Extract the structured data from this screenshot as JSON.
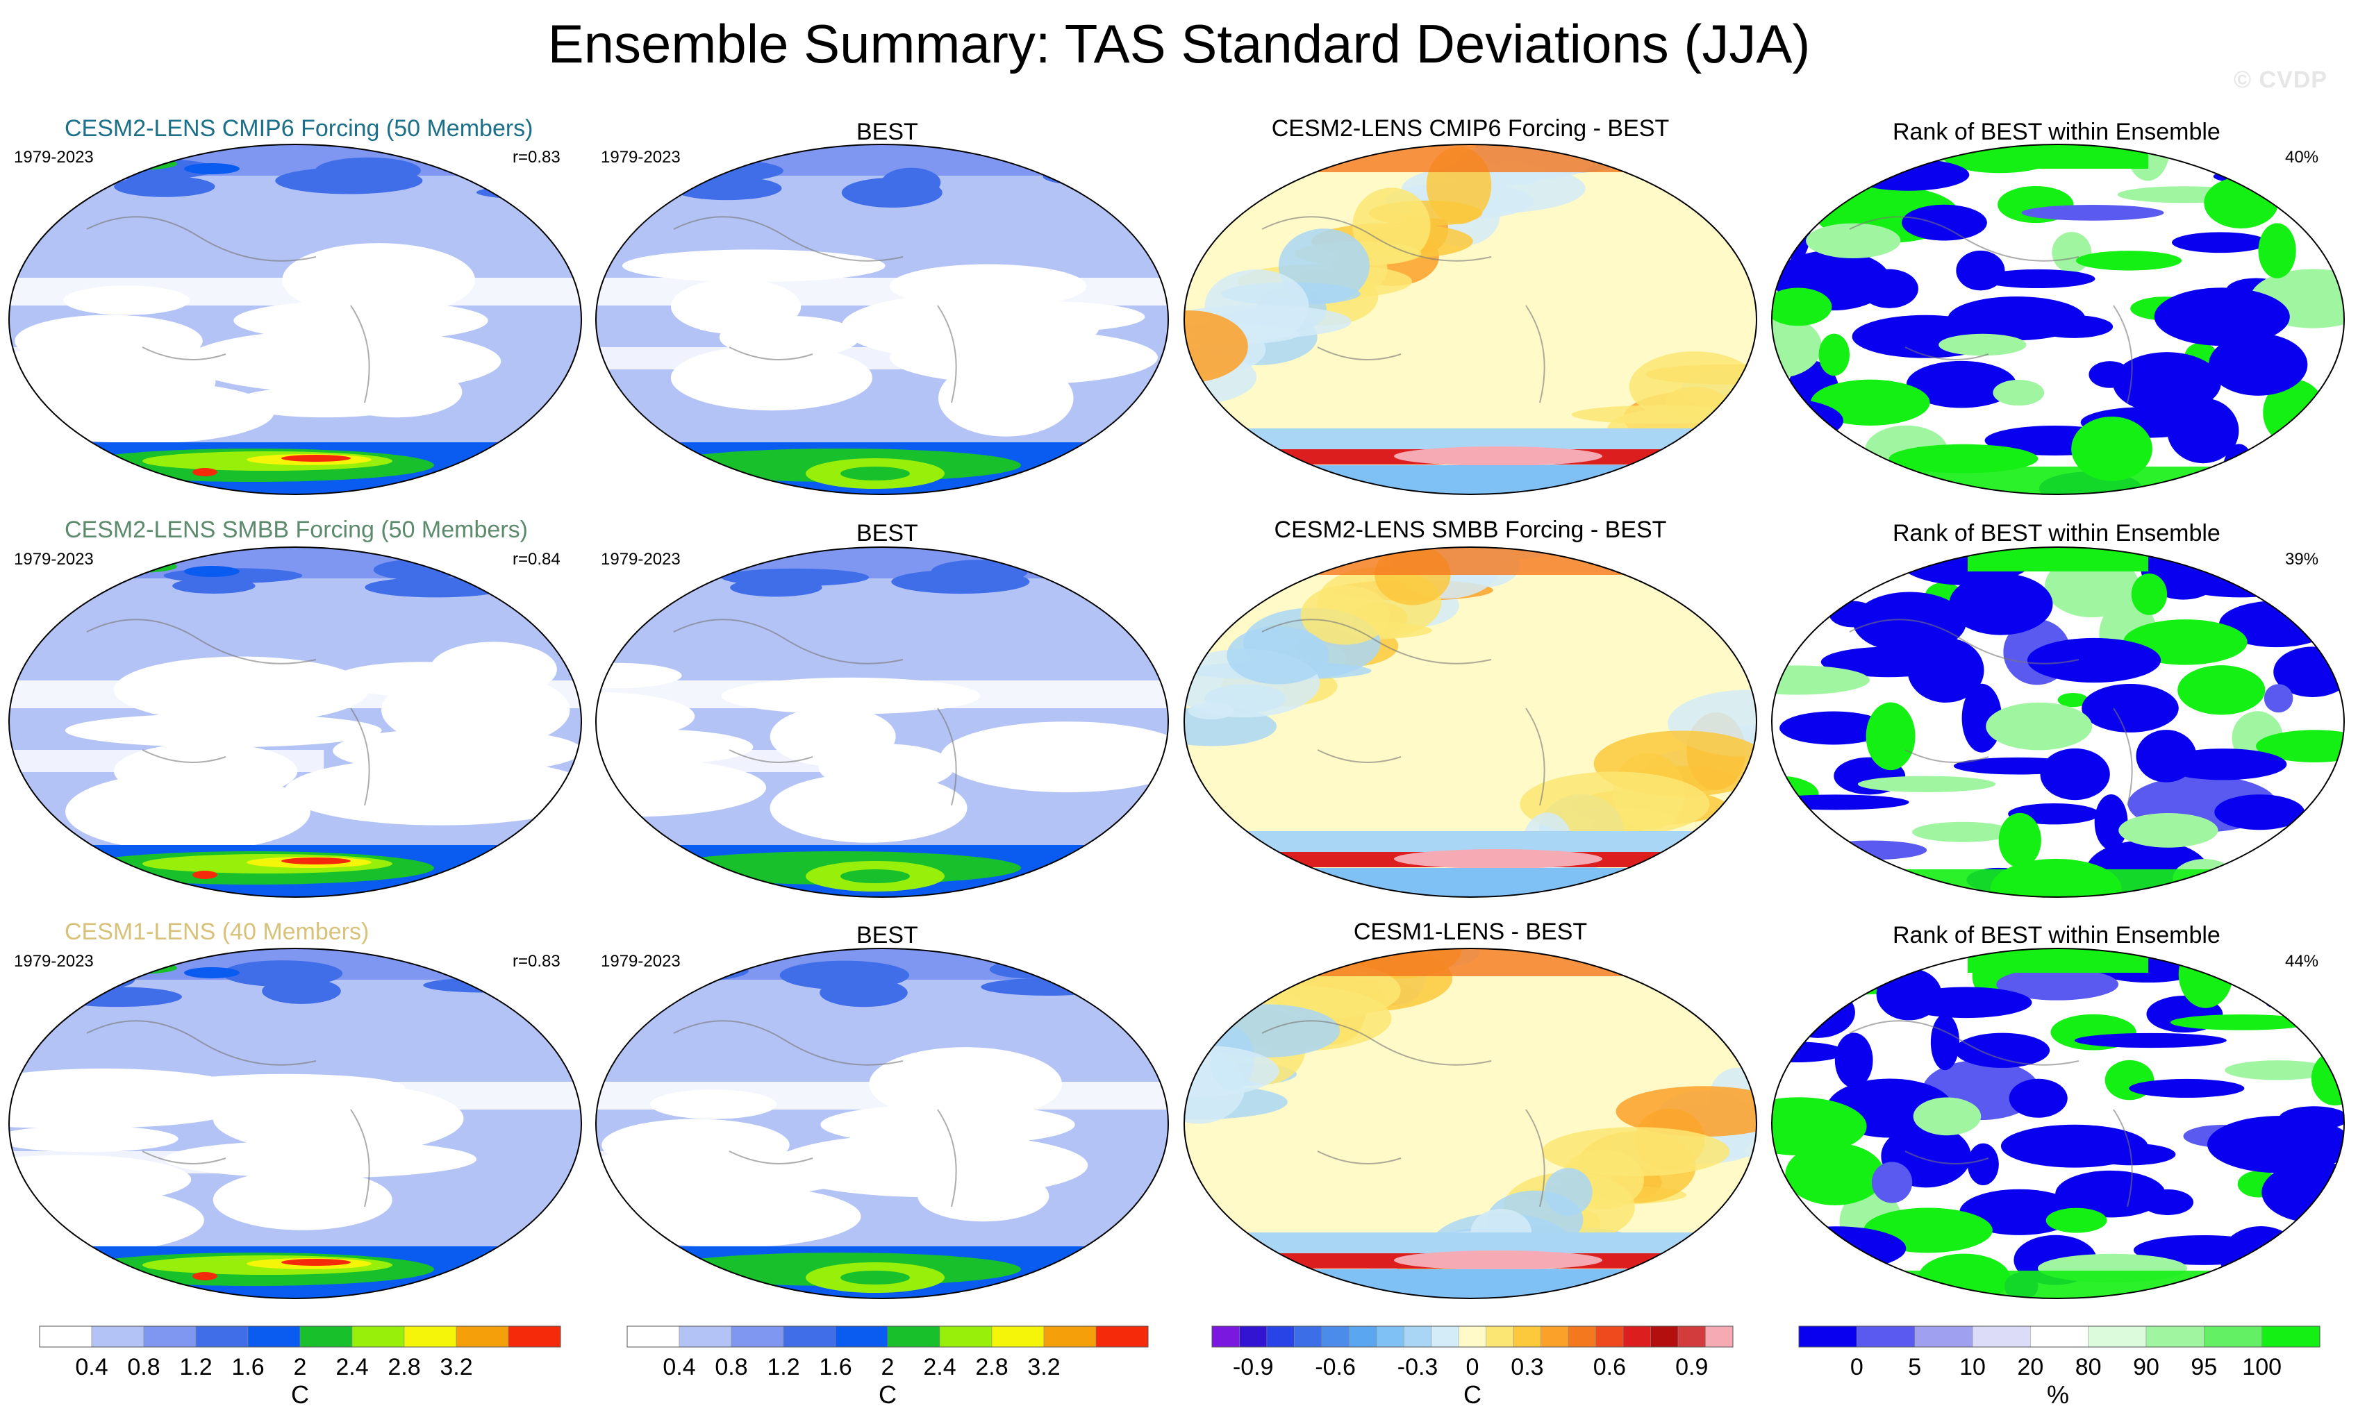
{
  "title": "Ensemble Summary: TAS Standard Deviations (JJA)",
  "watermark": "© CVDP",
  "rows": [
    {
      "model_title": "CESM2-LENS CMIP6 Forcing (50 Members)",
      "model_color": "#1c6f89",
      "period": "1979-2023",
      "r": "r=0.83",
      "obs_title": "BEST",
      "obs_period": "1979-2023",
      "diff_title": "CESM2-LENS CMIP6 Forcing - BEST",
      "rank_title": "Rank of BEST within Ensemble",
      "rank_pct": "40%"
    },
    {
      "model_title": "CESM2-LENS SMBB Forcing (50 Members)",
      "model_color": "#5b8a6c",
      "period": "1979-2023",
      "r": "r=0.84",
      "obs_title": "BEST",
      "obs_period": "1979-2023",
      "diff_title": "CESM2-LENS SMBB Forcing - BEST",
      "rank_title": "Rank of BEST within Ensemble",
      "rank_pct": "39%"
    },
    {
      "model_title": "CESM1-LENS (40 Members)",
      "model_color": "#d8c27a",
      "period": "1979-2023",
      "r": "r=0.83",
      "obs_title": "BEST",
      "obs_period": "1979-2023",
      "diff_title": "CESM1-LENS - BEST",
      "rank_title": "Rank of BEST within Ensemble",
      "rank_pct": "44%"
    }
  ],
  "colorbars": {
    "sd": {
      "unit": "C",
      "colors": [
        "#ffffff",
        "#b4c3f5",
        "#7f97f0",
        "#3f6ee8",
        "#0a5cf0",
        "#18c02c",
        "#98f00a",
        "#f5f50a",
        "#f5a00a",
        "#f52a0a"
      ],
      "ticks": [
        "0.4",
        "0.8",
        "1.2",
        "1.6",
        "2",
        "2.4",
        "2.8",
        "3.2"
      ]
    },
    "diff": {
      "unit": "C",
      "colors": [
        "#7a18e0",
        "#3214d2",
        "#2844e6",
        "#3c6ee8",
        "#4b8ceb",
        "#5aa6f0",
        "#7fc0f5",
        "#a9d6f5",
        "#d4ebf8",
        "#fffac8",
        "#fce673",
        "#fcc83c",
        "#fba028",
        "#f4781e",
        "#ee4a1e",
        "#dc1e1e",
        "#b40f0f",
        "#d23c3c",
        "#f5aab4"
      ],
      "ticks": [
        "-0.9",
        "-0.6",
        "-0.3",
        "0",
        "0.3",
        "0.6",
        "0.9"
      ]
    },
    "rank": {
      "unit": "%",
      "colors": [
        "#0a00f0",
        "#5a5af0",
        "#a0a0f0",
        "#dcdcf8",
        "#ffffff",
        "#dcfadc",
        "#a0f5a0",
        "#64f064",
        "#14f014"
      ],
      "ticks": [
        "0",
        "5",
        "10",
        "20",
        "80",
        "90",
        "95",
        "100"
      ]
    }
  },
  "chart_data": {
    "type": "heatmap",
    "description_panels": "3 rows x 4 columns of global maps (model ensemble-mean SD, BEST SD, model minus BEST, rank of BEST within ensemble)",
    "variable": "TAS standard deviation",
    "season": "JJA",
    "period": "1979-2023",
    "pattern_correlations": [
      {
        "model": "CESM2-LENS CMIP6 Forcing (50 Members)",
        "r": 0.83,
        "rank_pct_of_area": 40
      },
      {
        "model": "CESM2-LENS SMBB Forcing (50 Members)",
        "r": 0.84,
        "rank_pct_of_area": 39
      },
      {
        "model": "CESM1-LENS (40 Members)",
        "r": 0.83,
        "rank_pct_of_area": 44
      }
    ],
    "sd_levels": [
      0.4,
      0.8,
      1.2,
      1.6,
      2,
      2.4,
      2.8,
      3.2
    ],
    "diff_levels": [
      -0.9,
      -0.6,
      -0.3,
      0,
      0.3,
      0.6,
      0.9
    ],
    "rank_levels": [
      0,
      5,
      10,
      20,
      80,
      90,
      95,
      100
    ]
  }
}
